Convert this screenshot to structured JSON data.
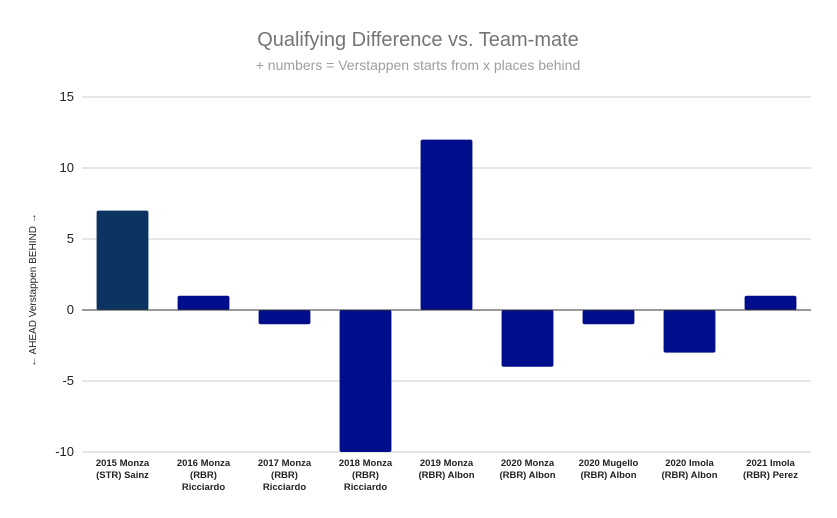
{
  "chart_data": {
    "type": "bar",
    "title": "Qualifying Difference vs. Team-mate",
    "subtitle": "+ numbers = Verstappen starts from x places behind",
    "xlabel": "",
    "ylabel": "← AHEAD Verstappen BEHIND →",
    "ylim": [
      -10,
      15
    ],
    "yticks": [
      15,
      10,
      5,
      0,
      -5,
      -10
    ],
    "grid": true,
    "categories": [
      [
        "2015 Monza",
        "(STR) Sainz"
      ],
      [
        "2016 Monza",
        "(RBR)",
        "Ricciardo"
      ],
      [
        "2017 Monza",
        "(RBR)",
        "Ricciardo"
      ],
      [
        "2018 Monza",
        "(RBR)",
        "Ricciardo"
      ],
      [
        "2019 Monza",
        "(RBR) Albon"
      ],
      [
        "2020 Monza",
        "(RBR) Albon"
      ],
      [
        "2020 Mugello",
        "(RBR) Albon"
      ],
      [
        "2020 Imola",
        "(RBR) Albon"
      ],
      [
        "2021 Imola",
        "(RBR) Perez"
      ]
    ],
    "values": [
      7,
      1,
      -1,
      -10,
      12,
      -4,
      -1,
      -3,
      1
    ],
    "colors": [
      "#0b3560",
      "#000e8c",
      "#000e8c",
      "#000e8c",
      "#000e8c",
      "#000e8c",
      "#000e8c",
      "#000e8c",
      "#000e8c"
    ]
  }
}
